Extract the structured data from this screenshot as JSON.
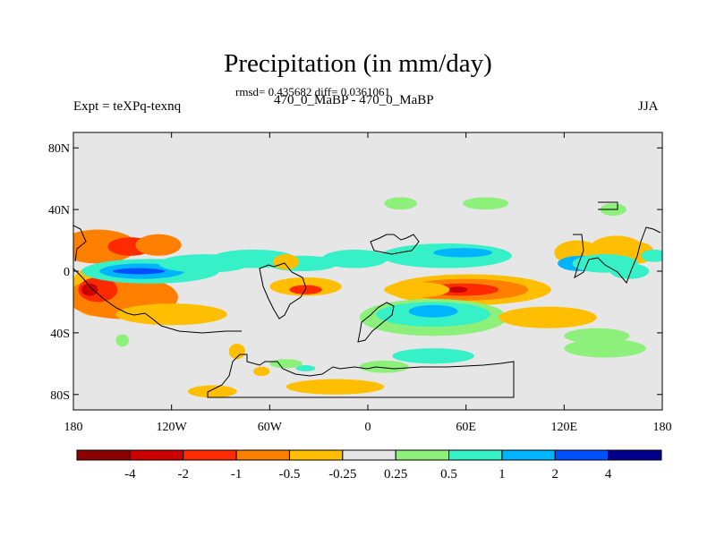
{
  "chart_data": {
    "type": "heatmap",
    "title": "Precipitation (in mm/day)",
    "stats_line": "rmsd= 0.435682 diff= 0.0361061",
    "subtitle": "470_0_MaBP - 470_0_MaBP",
    "left_label": "Expt = teXPq-texnq",
    "right_label": "JJA",
    "x_ticks": [
      {
        "value": -180,
        "label": "180"
      },
      {
        "value": -120,
        "label": "120W"
      },
      {
        "value": -60,
        "label": "60W"
      },
      {
        "value": 0,
        "label": "0"
      },
      {
        "value": 60,
        "label": "60E"
      },
      {
        "value": 120,
        "label": "120E"
      },
      {
        "value": 180,
        "label": "180"
      }
    ],
    "y_ticks": [
      {
        "value": 80,
        "label": "80N"
      },
      {
        "value": 40,
        "label": "40N"
      },
      {
        "value": 0,
        "label": "0"
      },
      {
        "value": -40,
        "label": "40S"
      },
      {
        "value": -80,
        "label": "80S"
      }
    ],
    "xlim": [
      -180,
      180
    ],
    "ylim": [
      -90,
      90
    ],
    "colorbar": {
      "colors": [
        "#8b0000",
        "#cc0000",
        "#ff2a00",
        "#ff7f00",
        "#ffbf00",
        "#e6e6e6",
        "#8cf07a",
        "#36f0c8",
        "#00b4ff",
        "#0050ff",
        "#00008b"
      ],
      "labels": [
        "-4",
        "-2",
        "-1",
        "-0.5",
        "-0.25",
        "0.25",
        "0.5",
        "1",
        "2",
        "4"
      ]
    },
    "anomaly_regions": [
      {
        "lon": -165,
        "lat": 16,
        "rx": 24,
        "ry": 11,
        "level": 3
      },
      {
        "lon": -145,
        "lat": 16,
        "rx": 14,
        "ry": 6,
        "level": 2
      },
      {
        "lon": -128,
        "lat": 17,
        "rx": 14,
        "ry": 7,
        "level": 3
      },
      {
        "lon": -168,
        "lat": -13,
        "rx": 14,
        "ry": 16,
        "level": 4
      },
      {
        "lon": -150,
        "lat": -17,
        "rx": 34,
        "ry": 14,
        "level": 3
      },
      {
        "lon": -165,
        "lat": -12,
        "rx": 12,
        "ry": 8,
        "level": 2
      },
      {
        "lon": -170,
        "lat": -12,
        "rx": 5,
        "ry": 4,
        "level": 1
      },
      {
        "lon": -120,
        "lat": -28,
        "rx": 34,
        "ry": 7,
        "level": 4
      },
      {
        "lon": -133,
        "lat": 0,
        "rx": 42,
        "ry": 8,
        "level": 7
      },
      {
        "lon": -138,
        "lat": 0,
        "rx": 26,
        "ry": 5,
        "level": 8
      },
      {
        "lon": -140,
        "lat": 0,
        "rx": 16,
        "ry": 2,
        "level": 9
      },
      {
        "lon": -100,
        "lat": 5,
        "rx": 28,
        "ry": 6,
        "level": 7
      },
      {
        "lon": -70,
        "lat": 8,
        "rx": 26,
        "ry": 6,
        "level": 7
      },
      {
        "lon": -40,
        "lat": 5,
        "rx": 22,
        "ry": 5,
        "level": 7
      },
      {
        "lon": -8,
        "lat": 8,
        "rx": 20,
        "ry": 6,
        "level": 7
      },
      {
        "lon": 48,
        "lat": 10,
        "rx": 40,
        "ry": 8,
        "level": 7
      },
      {
        "lon": 58,
        "lat": 12,
        "rx": 18,
        "ry": 3,
        "level": 8
      },
      {
        "lon": 20,
        "lat": 44,
        "rx": 10,
        "ry": 4,
        "level": 6
      },
      {
        "lon": 72,
        "lat": 44,
        "rx": 14,
        "ry": 4,
        "level": 6
      },
      {
        "lon": 150,
        "lat": 40,
        "rx": 8,
        "ry": 4,
        "level": 6
      },
      {
        "lon": -50,
        "lat": 6,
        "rx": 8,
        "ry": 5,
        "level": 4
      },
      {
        "lon": -38,
        "lat": -10,
        "rx": 22,
        "ry": 6,
        "level": 4
      },
      {
        "lon": -38,
        "lat": -12,
        "rx": 10,
        "ry": 3,
        "level": 2
      },
      {
        "lon": 62,
        "lat": -12,
        "rx": 50,
        "ry": 10,
        "level": 4
      },
      {
        "lon": 60,
        "lat": -12,
        "rx": 38,
        "ry": 7,
        "level": 3
      },
      {
        "lon": 58,
        "lat": -12,
        "rx": 22,
        "ry": 4,
        "level": 2
      },
      {
        "lon": 55,
        "lat": -12,
        "rx": 6,
        "ry": 2,
        "level": 1
      },
      {
        "lon": 30,
        "lat": -12,
        "rx": 20,
        "ry": 5,
        "level": 4
      },
      {
        "lon": 40,
        "lat": -30,
        "rx": 45,
        "ry": 12,
        "level": 6
      },
      {
        "lon": 40,
        "lat": -28,
        "rx": 35,
        "ry": 8,
        "level": 7
      },
      {
        "lon": 40,
        "lat": -26,
        "rx": 15,
        "ry": 4,
        "level": 8
      },
      {
        "lon": 110,
        "lat": -30,
        "rx": 30,
        "ry": 7,
        "level": 4
      },
      {
        "lon": 145,
        "lat": -50,
        "rx": 25,
        "ry": 6,
        "level": 6
      },
      {
        "lon": 140,
        "lat": -42,
        "rx": 20,
        "ry": 5,
        "level": 6
      },
      {
        "lon": 128,
        "lat": 12,
        "rx": 14,
        "ry": 8,
        "level": 4
      },
      {
        "lon": 152,
        "lat": 15,
        "rx": 16,
        "ry": 8,
        "level": 4
      },
      {
        "lon": 165,
        "lat": 12,
        "rx": 10,
        "ry": 7,
        "level": 4
      },
      {
        "lon": 130,
        "lat": 5,
        "rx": 14,
        "ry": 5,
        "level": 8
      },
      {
        "lon": 145,
        "lat": 5,
        "rx": 20,
        "ry": 6,
        "level": 7
      },
      {
        "lon": 160,
        "lat": 0,
        "rx": 12,
        "ry": 5,
        "level": 7
      },
      {
        "lon": 175,
        "lat": 10,
        "rx": 8,
        "ry": 4,
        "level": 7
      },
      {
        "lon": -150,
        "lat": -45,
        "rx": 4,
        "ry": 4,
        "level": 6
      },
      {
        "lon": -80,
        "lat": -52,
        "rx": 5,
        "ry": 5,
        "level": 4
      },
      {
        "lon": -50,
        "lat": -60,
        "rx": 10,
        "ry": 3,
        "level": 6
      },
      {
        "lon": -38,
        "lat": -63,
        "rx": 6,
        "ry": 2,
        "level": 7
      },
      {
        "lon": -20,
        "lat": -75,
        "rx": 30,
        "ry": 5,
        "level": 4
      },
      {
        "lon": 10,
        "lat": -62,
        "rx": 15,
        "ry": 4,
        "level": 6
      },
      {
        "lon": 40,
        "lat": -55,
        "rx": 25,
        "ry": 5,
        "level": 7
      },
      {
        "lon": -95,
        "lat": -78,
        "rx": 15,
        "ry": 4,
        "level": 4
      },
      {
        "lon": -65,
        "lat": -65,
        "rx": 5,
        "ry": 3,
        "level": 4
      }
    ]
  }
}
